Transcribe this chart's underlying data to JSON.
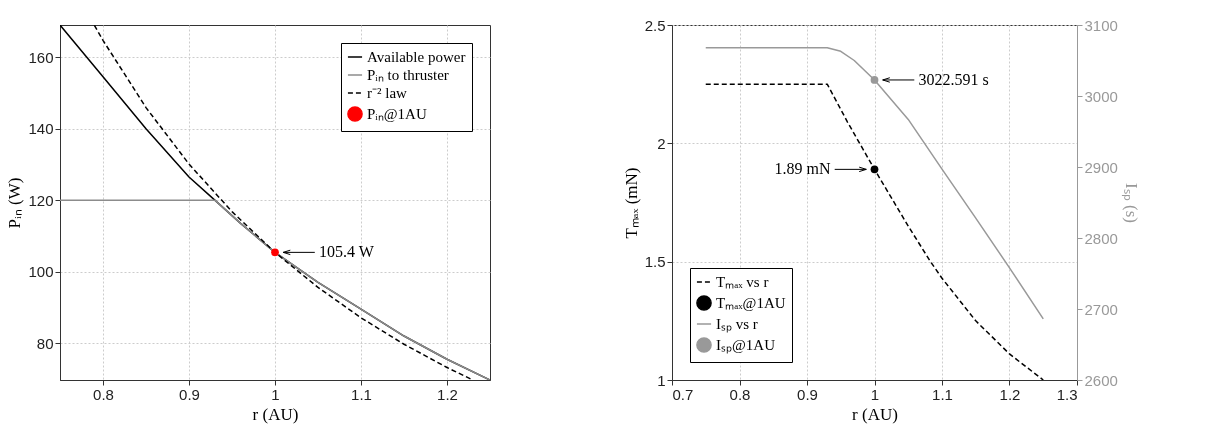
{
  "chart_data": [
    {
      "type": "line",
      "xlabel": "r (AU)",
      "ylabel": "Pᵢₙ (W)",
      "xlim": [
        0.75,
        1.25
      ],
      "ylim": [
        69.7,
        169
      ],
      "xticks": [
        0.8,
        0.9,
        1,
        1.1,
        1.2
      ],
      "yticks": [
        80,
        100,
        120,
        140,
        160
      ],
      "grid": true,
      "legend": "top right",
      "series": [
        {
          "name": "Available power",
          "color": "#000000",
          "line_style": "solid",
          "x": [
            0.75,
            0.8,
            0.85,
            0.9,
            0.93,
            0.96,
            1.0,
            1.05,
            1.1,
            1.15,
            1.2,
            1.25
          ],
          "values": [
            169,
            154.5,
            140,
            126.5,
            120,
            113.5,
            105.4,
            97,
            89.5,
            82,
            75.5,
            69.7
          ]
        },
        {
          "name": "Pᵢₙ to thruster",
          "color": "#8c8c8c",
          "line_style": "solid",
          "x": [
            0.75,
            0.93,
            0.96,
            1.0,
            1.05,
            1.1,
            1.15,
            1.2,
            1.25
          ],
          "values": [
            120,
            120,
            113.5,
            105.4,
            97,
            89.5,
            82,
            75.5,
            69.7
          ]
        },
        {
          "name": "r⁻² law",
          "color": "#000000",
          "line_style": "dashed",
          "x": [
            0.79,
            0.8,
            0.85,
            0.9,
            0.95,
            1.0,
            1.05,
            1.1,
            1.15,
            1.2,
            1.23
          ],
          "values": [
            168.9,
            164.7,
            145.9,
            130.1,
            116.8,
            105.4,
            95.6,
            87.1,
            79.7,
            73.2,
            69.7
          ]
        },
        {
          "name": "Pᵢₙ@1AU",
          "type": "scatter",
          "marker": "circle",
          "color": "#ff0000",
          "x": [
            1.0
          ],
          "values": [
            105.4
          ],
          "value_labels": [
            "105.4 W"
          ]
        }
      ]
    },
    {
      "type": "line",
      "xlabel": "r (AU)",
      "ylabel": "Tₘₐₓ (mN)",
      "y2label": "Iₛₚ (s)",
      "xlim": [
        0.7,
        1.3
      ],
      "ylim": [
        1,
        2.5
      ],
      "y2lim": [
        2600,
        3100
      ],
      "xticks": [
        0.7,
        0.8,
        0.9,
        1,
        1.1,
        1.2,
        1.3
      ],
      "yticks": [
        1,
        1.5,
        2,
        2.5
      ],
      "y2ticks": [
        2600,
        2700,
        2800,
        2900,
        3000,
        3100
      ],
      "grid": true,
      "legend": "bottom left",
      "series": [
        {
          "name": "Tₘₐₓ vs r",
          "color": "#000000",
          "line_style": "dashed",
          "x": [
            0.75,
            0.93,
            0.96,
            1.0,
            1.05,
            1.083,
            1.1,
            1.15,
            1.2,
            1.25
          ],
          "values": [
            2.25,
            2.25,
            2.09,
            1.89,
            1.65,
            1.5,
            1.43,
            1.25,
            1.11,
            1.0
          ]
        },
        {
          "name": "Tₘₐₓ@1AU",
          "type": "scatter",
          "marker": "circle",
          "color": "#000000",
          "x": [
            1.0
          ],
          "values": [
            1.89
          ],
          "value_labels": [
            "1.89 mN"
          ]
        },
        {
          "name": "Iₛₚ vs r",
          "color": "#999999",
          "line_style": "solid",
          "axis": "y2",
          "x": [
            0.75,
            0.93,
            0.95,
            0.97,
            1.0,
            1.05,
            1.1,
            1.15,
            1.2,
            1.25
          ],
          "values": [
            3068,
            3068,
            3063,
            3050,
            3022.591,
            2967,
            2897,
            2828,
            2758,
            2686
          ]
        },
        {
          "name": "Iₛₚ@1AU",
          "type": "scatter",
          "marker": "circle",
          "color": "#999999",
          "axis": "y2",
          "x": [
            1.0
          ],
          "values": [
            3022.591
          ],
          "value_labels": [
            "3022.591 s"
          ]
        }
      ]
    }
  ]
}
